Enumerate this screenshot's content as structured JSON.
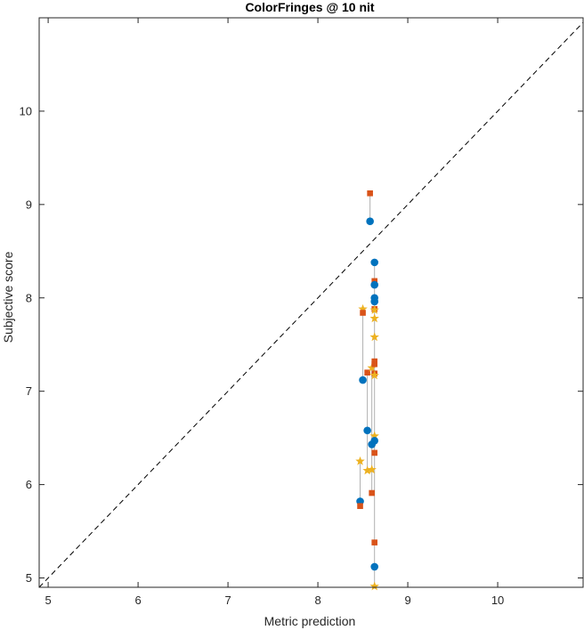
{
  "chart_data": {
    "type": "scatter",
    "title": "ColorFringes @ 10 nit",
    "xlabel": "Metric prediction",
    "ylabel": "Subjective score",
    "xlim": [
      4.9,
      10.95
    ],
    "ylim": [
      4.9,
      11.0
    ],
    "xticks": [
      "5",
      "6",
      "7",
      "8",
      "9",
      "10"
    ],
    "yticks": [
      "5",
      "6",
      "7",
      "8",
      "9",
      "10"
    ],
    "grid": false,
    "reference_line": "y = x (dashed)",
    "colors": {
      "blue": "#0072BD",
      "orange": "#D95319",
      "yellow": "#EDB120",
      "connector": "#b0b0b0",
      "reference": "#000000"
    },
    "groups": [
      {
        "x": 8.58,
        "points": [
          {
            "marker": "square",
            "y": 9.12
          },
          {
            "marker": "circle",
            "y": 8.82
          }
        ]
      },
      {
        "x": 8.5,
        "points": [
          {
            "marker": "star",
            "y": 7.88
          },
          {
            "marker": "square",
            "y": 7.84
          },
          {
            "marker": "circle",
            "y": 7.12
          }
        ]
      },
      {
        "x": 8.55,
        "points": [
          {
            "marker": "square",
            "y": 7.2
          },
          {
            "marker": "circle",
            "y": 6.58
          },
          {
            "marker": "star",
            "y": 6.15
          }
        ]
      },
      {
        "x": 8.6,
        "points": [
          {
            "marker": "star",
            "y": 7.25
          },
          {
            "marker": "circle",
            "y": 6.43
          },
          {
            "marker": "star",
            "y": 6.16
          },
          {
            "marker": "square",
            "y": 5.91
          }
        ]
      },
      {
        "x": 8.47,
        "points": [
          {
            "marker": "star",
            "y": 6.25
          },
          {
            "marker": "circle",
            "y": 5.82
          },
          {
            "marker": "square",
            "y": 5.77
          }
        ]
      },
      {
        "x": 8.63,
        "points": [
          {
            "marker": "circle",
            "y": 8.38
          },
          {
            "marker": "square",
            "y": 8.18
          },
          {
            "marker": "circle",
            "y": 8.14
          },
          {
            "marker": "circle",
            "y": 8.0
          },
          {
            "marker": "circle",
            "y": 7.96
          },
          {
            "marker": "square",
            "y": 7.88
          },
          {
            "marker": "star",
            "y": 7.87
          },
          {
            "marker": "star",
            "y": 7.78
          },
          {
            "marker": "star",
            "y": 7.58
          },
          {
            "marker": "square",
            "y": 7.32
          },
          {
            "marker": "square",
            "y": 7.29
          },
          {
            "marker": "square",
            "y": 7.19
          },
          {
            "marker": "star",
            "y": 7.17
          },
          {
            "marker": "star",
            "y": 6.52
          },
          {
            "marker": "circle",
            "y": 6.47
          },
          {
            "marker": "square",
            "y": 6.34
          },
          {
            "marker": "square",
            "y": 5.38
          },
          {
            "marker": "circle",
            "y": 5.12
          },
          {
            "marker": "star",
            "y": 4.91
          }
        ]
      }
    ]
  }
}
